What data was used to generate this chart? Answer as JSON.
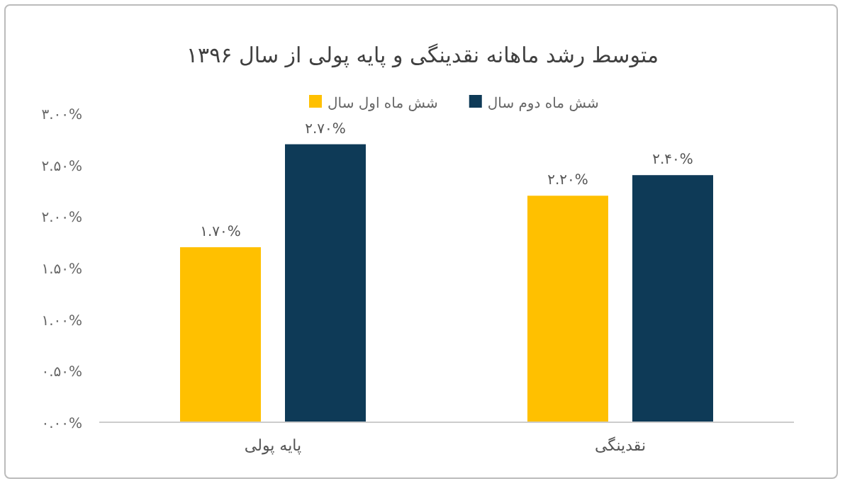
{
  "chart_data": {
    "type": "bar",
    "title": "متوسط رشد ماهانه نقدینگی و پایه پولی از سال ۱۳۹۶",
    "categories": [
      "پایه پولی",
      "نقدینگی"
    ],
    "series": [
      {
        "name": "شش ماه اول سال",
        "color": "#ffc000",
        "values": [
          1.7,
          2.2
        ],
        "value_labels": [
          "۱.۷۰%",
          "۲.۲۰%"
        ]
      },
      {
        "name": "شش ماه دوم سال",
        "color": "#0e3a57",
        "values": [
          2.7,
          2.4
        ],
        "value_labels": [
          "۲.۷۰%",
          "۲.۴۰%"
        ]
      }
    ],
    "ylim": [
      0,
      3
    ],
    "yticks": [
      {
        "value": 0,
        "label": "۰.۰۰%"
      },
      {
        "value": 0.5,
        "label": "۰.۵۰%"
      },
      {
        "value": 1,
        "label": "۱.۰۰%"
      },
      {
        "value": 1.5,
        "label": "۱.۵۰%"
      },
      {
        "value": 2,
        "label": "۲.۰۰%"
      },
      {
        "value": 2.5,
        "label": "۲.۵۰%"
      },
      {
        "value": 3,
        "label": "۳.۰۰%"
      }
    ],
    "legend": "top"
  }
}
